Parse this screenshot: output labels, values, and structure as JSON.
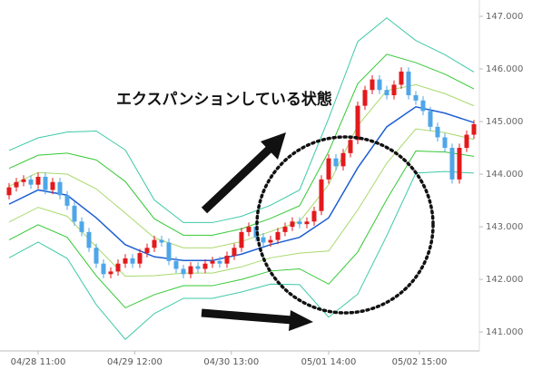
{
  "chart_data": {
    "type": "candlestick",
    "annotation": "エクスパンションしている状態",
    "xlim": [
      -1.25,
      64.75
    ],
    "xticks": [
      {
        "value": 4,
        "label": "04/28 11:00"
      },
      {
        "value": 17.3,
        "label": "04/29 12:00"
      },
      {
        "value": 30.6,
        "label": "04/30 13:00"
      },
      {
        "value": 44,
        "label": "05/01 14:00"
      },
      {
        "value": 56.5,
        "label": "05/02 15:00"
      }
    ],
    "ylim": [
      140.64,
      147.31
    ],
    "yticks": [
      {
        "value": 141,
        "label": "141.000"
      },
      {
        "value": 142,
        "label": "142.000"
      },
      {
        "value": 143,
        "label": "143.000"
      },
      {
        "value": 144,
        "label": "144.000"
      },
      {
        "value": 145,
        "label": "145.000"
      },
      {
        "value": 146,
        "label": "146.000"
      },
      {
        "value": 147,
        "label": "147.000"
      }
    ],
    "up_color": "#e3191c",
    "down_color": "#4ea6e8",
    "open": [
      143.6,
      143.75,
      143.85,
      143.9,
      143.8,
      143.95,
      143.7,
      143.85,
      143.6,
      143.4,
      143.1,
      142.9,
      142.6,
      142.3,
      142.1,
      142.15,
      142.3,
      142.4,
      142.3,
      142.5,
      142.6,
      142.75,
      142.7,
      142.35,
      142.2,
      142.1,
      142.25,
      142.2,
      142.3,
      142.35,
      142.3,
      142.45,
      142.6,
      142.9,
      143.0,
      142.8,
      142.7,
      142.75,
      142.9,
      143.0,
      143.1,
      143.05,
      143.1,
      143.3,
      143.9,
      144.3,
      144.15,
      144.4,
      144.65,
      145.3,
      145.6,
      145.8,
      145.6,
      145.5,
      145.7,
      145.95,
      145.5,
      145.4,
      145.2,
      144.9,
      144.7,
      144.5,
      143.9,
      144.5,
      144.75
    ],
    "high": [
      143.83,
      143.93,
      143.98,
      143.98,
      144.03,
      144.03,
      143.93,
      143.93,
      143.68,
      143.48,
      143.18,
      142.98,
      142.68,
      142.38,
      142.23,
      142.38,
      142.48,
      142.48,
      142.58,
      142.68,
      142.83,
      142.83,
      142.78,
      142.43,
      142.28,
      142.33,
      142.33,
      142.38,
      142.43,
      142.43,
      142.53,
      142.68,
      142.98,
      143.08,
      143.08,
      142.88,
      142.83,
      142.98,
      143.08,
      143.18,
      143.18,
      143.18,
      143.38,
      143.98,
      144.38,
      144.38,
      144.48,
      144.73,
      145.38,
      145.68,
      145.88,
      145.88,
      145.68,
      145.78,
      146.03,
      146.03,
      145.58,
      145.48,
      145.28,
      144.98,
      144.78,
      144.58,
      144.58,
      144.83,
      145.03
    ],
    "low": [
      143.52,
      143.67,
      143.77,
      143.72,
      143.72,
      143.62,
      143.62,
      143.52,
      143.32,
      143.02,
      142.82,
      142.52,
      142.22,
      142.02,
      142.02,
      142.07,
      142.22,
      142.22,
      142.22,
      142.42,
      142.52,
      142.62,
      142.27,
      142.12,
      142.02,
      142.02,
      142.12,
      142.12,
      142.22,
      142.22,
      142.22,
      142.37,
      142.52,
      142.82,
      142.72,
      142.62,
      142.62,
      142.67,
      142.82,
      142.92,
      142.97,
      142.97,
      143.02,
      143.22,
      143.82,
      144.07,
      144.07,
      144.32,
      144.57,
      145.22,
      145.52,
      145.52,
      145.42,
      145.42,
      145.62,
      145.42,
      145.32,
      145.12,
      144.82,
      144.62,
      144.42,
      143.82,
      143.82,
      144.42,
      144.67
    ],
    "close": [
      143.75,
      143.85,
      143.9,
      143.8,
      143.95,
      143.7,
      143.85,
      143.6,
      143.4,
      143.1,
      142.9,
      142.6,
      142.3,
      142.1,
      142.15,
      142.3,
      142.4,
      142.3,
      142.5,
      142.6,
      142.75,
      142.7,
      142.35,
      142.2,
      142.1,
      142.25,
      142.2,
      142.3,
      142.35,
      142.3,
      142.45,
      142.6,
      142.9,
      143.0,
      142.8,
      142.7,
      142.75,
      142.9,
      143.0,
      143.1,
      143.05,
      143.1,
      143.3,
      143.9,
      144.3,
      144.15,
      144.4,
      144.65,
      145.3,
      145.6,
      145.8,
      145.6,
      145.5,
      145.7,
      145.95,
      145.5,
      145.4,
      145.2,
      144.9,
      144.7,
      144.5,
      143.9,
      144.5,
      144.75,
      144.95
    ],
    "band_x": [
      0,
      4,
      8,
      12,
      16,
      20,
      24,
      28,
      32,
      36,
      40,
      44,
      48,
      52,
      56,
      60,
      64
    ],
    "bands": [
      {
        "color": "#3ec9a7",
        "values": [
          144.45,
          144.69,
          144.8,
          144.82,
          144.46,
          143.51,
          143.08,
          143.08,
          143.2,
          143.41,
          143.7,
          145.06,
          146.52,
          146.97,
          146.54,
          146.27,
          145.94
        ]
      },
      {
        "color": "#34c934",
        "values": [
          144.11,
          144.36,
          144.4,
          144.27,
          143.86,
          143.15,
          142.84,
          142.84,
          142.96,
          143.16,
          143.4,
          144.43,
          145.72,
          146.28,
          146.12,
          145.9,
          145.62
        ]
      },
      {
        "color": "#a8d96c",
        "values": [
          143.77,
          144.03,
          144.0,
          143.72,
          143.26,
          142.79,
          142.6,
          142.6,
          142.72,
          142.91,
          143.1,
          143.8,
          144.92,
          145.59,
          145.7,
          145.53,
          145.3
        ]
      },
      {
        "color": "#1d5fd2",
        "values": [
          143.43,
          143.7,
          143.6,
          143.17,
          142.66,
          142.43,
          142.36,
          142.36,
          142.48,
          142.66,
          142.8,
          143.17,
          144.12,
          144.9,
          145.28,
          145.16,
          144.98
        ]
      },
      {
        "color": "#a8d96c",
        "values": [
          143.09,
          143.37,
          143.2,
          142.62,
          142.06,
          142.07,
          142.12,
          142.12,
          142.24,
          142.41,
          142.5,
          142.54,
          143.32,
          144.21,
          144.86,
          144.79,
          144.66
        ]
      },
      {
        "color": "#34c934",
        "values": [
          142.75,
          143.04,
          142.8,
          142.07,
          141.46,
          141.71,
          141.88,
          141.88,
          142.0,
          142.16,
          142.2,
          141.91,
          142.52,
          143.52,
          144.44,
          144.42,
          144.34
        ]
      },
      {
        "color": "#3ec9a7",
        "values": [
          142.41,
          142.71,
          142.4,
          141.52,
          140.86,
          141.35,
          141.64,
          141.64,
          141.76,
          141.91,
          141.9,
          141.28,
          141.72,
          142.83,
          144.02,
          144.05,
          144.02
        ]
      }
    ]
  }
}
